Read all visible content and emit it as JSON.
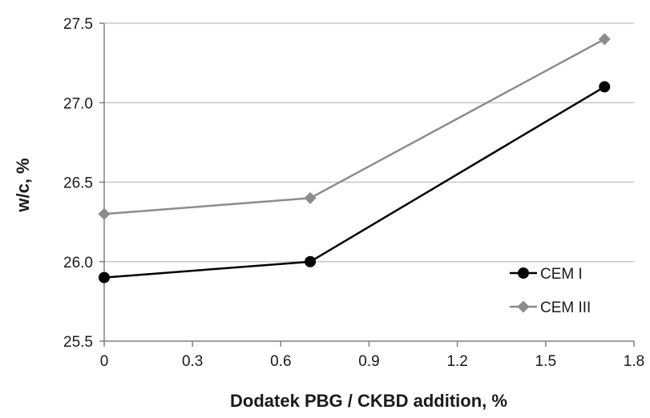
{
  "chart_data": {
    "type": "line",
    "xlabel": "Dodatek PBG / CKBD addition, %",
    "ylabel": "w/c, %",
    "xlim": [
      0,
      1.8
    ],
    "ylim": [
      25.5,
      27.5
    ],
    "x_ticks": [
      "0",
      "0.3",
      "0.6",
      "0.9",
      "1.2",
      "1.5",
      "1.8"
    ],
    "y_ticks": [
      "25.5",
      "26.0",
      "26.5",
      "27.0",
      "27.5"
    ],
    "grid": "horizontal",
    "legend_position": "bottom-right",
    "series": [
      {
        "name": "CEM I",
        "x": [
          0,
          0.7,
          1.7
        ],
        "y": [
          25.9,
          26.0,
          27.1
        ],
        "color": "#000000",
        "marker": "circle"
      },
      {
        "name": "CEM III",
        "x": [
          0,
          0.7,
          1.7
        ],
        "y": [
          26.3,
          26.4,
          27.4
        ],
        "color": "#8c8c8c",
        "marker": "diamond"
      }
    ]
  }
}
